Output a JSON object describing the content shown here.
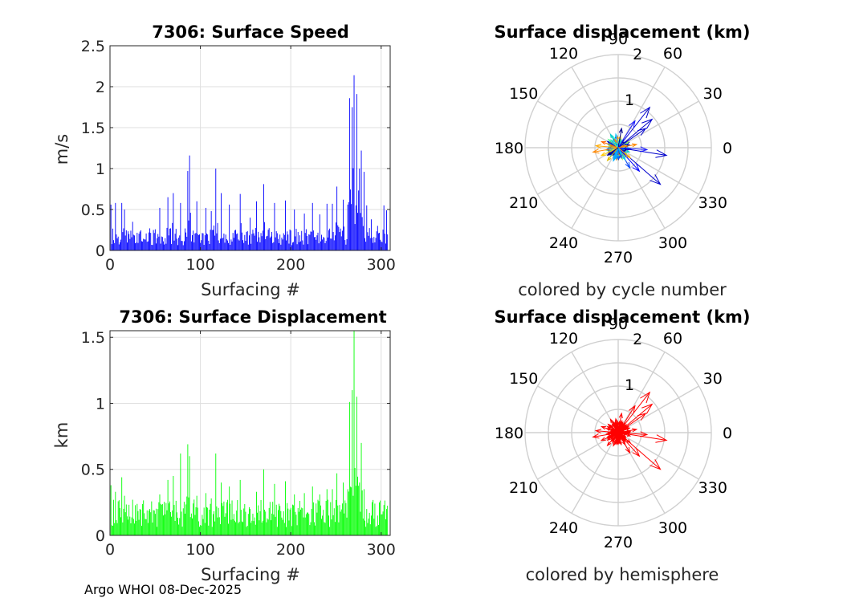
{
  "chart_data": [
    {
      "type": "bar",
      "title": "7306: Surface Speed",
      "xlabel": "Surfacing #",
      "ylabel": "m/s",
      "xlim": [
        0,
        310
      ],
      "ylim": [
        0,
        2.5
      ],
      "xticks": [
        "0",
        "100",
        "200",
        "300"
      ],
      "yticks": [
        "0",
        "0.5",
        "1",
        "1.5",
        "2",
        "2.5"
      ],
      "grid": true,
      "color": "#0000ff",
      "peaks": [
        [
          1,
          0.56
        ],
        [
          6,
          0.58
        ],
        [
          13,
          0.58
        ],
        [
          16,
          0.5
        ],
        [
          25,
          0.35
        ],
        [
          33,
          0.23
        ],
        [
          44,
          0.27
        ],
        [
          55,
          0.52
        ],
        [
          64,
          0.65
        ],
        [
          70,
          0.7
        ],
        [
          78,
          0.58
        ],
        [
          86,
          0.97
        ],
        [
          88,
          1.16
        ],
        [
          96,
          0.6
        ],
        [
          106,
          0.52
        ],
        [
          112,
          0.48
        ],
        [
          117,
          1.0
        ],
        [
          123,
          0.7
        ],
        [
          132,
          0.56
        ],
        [
          144,
          0.69
        ],
        [
          155,
          0.4
        ],
        [
          162,
          0.6
        ],
        [
          170,
          0.81
        ],
        [
          182,
          0.58
        ],
        [
          194,
          0.61
        ],
        [
          204,
          0.5
        ],
        [
          215,
          0.45
        ],
        [
          224,
          0.58
        ],
        [
          232,
          0.44
        ],
        [
          240,
          0.57
        ],
        [
          246,
          0.57
        ],
        [
          251,
          0.78
        ],
        [
          258,
          0.62
        ],
        [
          263,
          0.56
        ],
        [
          265,
          1.86
        ],
        [
          268,
          1.75
        ],
        [
          270,
          2.14
        ],
        [
          273,
          1.91
        ],
        [
          276,
          1.0
        ],
        [
          278,
          1.22
        ],
        [
          281,
          0.96
        ],
        [
          284,
          0.55
        ],
        [
          289,
          0.38
        ],
        [
          296,
          0.3
        ],
        [
          303,
          0.55
        ],
        [
          306,
          0.49
        ]
      ],
      "seed": 7306
    },
    {
      "type": "bar",
      "title": "7306: Surface Displacement",
      "xlabel": "Surfacing #",
      "ylabel": "km",
      "xlim": [
        0,
        310
      ],
      "ylim": [
        0,
        1.55
      ],
      "xticks": [
        "0",
        "100",
        "200",
        "300"
      ],
      "yticks": [
        "0",
        "0.5",
        "1",
        "1.5"
      ],
      "grid": true,
      "color": "#00ff00",
      "peaks": [
        [
          1,
          0.38
        ],
        [
          6,
          0.33
        ],
        [
          13,
          0.44
        ],
        [
          16,
          0.3
        ],
        [
          25,
          0.27
        ],
        [
          33,
          0.2
        ],
        [
          44,
          0.2
        ],
        [
          55,
          0.31
        ],
        [
          64,
          0.42
        ],
        [
          70,
          0.45
        ],
        [
          78,
          0.62
        ],
        [
          86,
          0.69
        ],
        [
          88,
          0.6
        ],
        [
          96,
          0.3
        ],
        [
          106,
          0.32
        ],
        [
          112,
          0.28
        ],
        [
          117,
          0.62
        ],
        [
          123,
          0.4
        ],
        [
          132,
          0.37
        ],
        [
          144,
          0.42
        ],
        [
          155,
          0.2
        ],
        [
          162,
          0.33
        ],
        [
          170,
          0.5
        ],
        [
          182,
          0.39
        ],
        [
          194,
          0.41
        ],
        [
          204,
          0.31
        ],
        [
          215,
          0.32
        ],
        [
          224,
          0.37
        ],
        [
          232,
          0.31
        ],
        [
          240,
          0.35
        ],
        [
          246,
          0.35
        ],
        [
          251,
          0.47
        ],
        [
          258,
          0.4
        ],
        [
          263,
          0.35
        ],
        [
          265,
          1.01
        ],
        [
          268,
          1.1
        ],
        [
          270,
          1.55
        ],
        [
          273,
          1.05
        ],
        [
          276,
          0.4
        ],
        [
          278,
          0.7
        ],
        [
          281,
          0.35
        ],
        [
          284,
          0.2
        ],
        [
          289,
          0.15
        ],
        [
          296,
          0.15
        ],
        [
          303,
          0.23
        ],
        [
          306,
          0.2
        ]
      ],
      "seed": 7307
    },
    {
      "type": "polar-compass",
      "title": "Surface displacement (km)",
      "caption": "colored by cycle number",
      "rmax": 2,
      "rticks": [
        "1",
        "2"
      ],
      "angle_labels": [
        "0",
        "30",
        "60",
        "90",
        "120",
        "150",
        "180",
        "210",
        "240",
        "270",
        "300",
        "330"
      ],
      "vectors": [
        {
          "angle": 52,
          "r": 1.1,
          "color": "#0000cc"
        },
        {
          "angle": 40,
          "r": 0.95,
          "color": "#0000cc"
        },
        {
          "angle": 35,
          "r": 0.72,
          "color": "#0000cc"
        },
        {
          "angle": 58,
          "r": 0.68,
          "color": "#1a1aff"
        },
        {
          "angle": -9,
          "r": 1.05,
          "color": "#0000cc"
        },
        {
          "angle": -4,
          "r": 0.62,
          "color": "#1a1aff"
        },
        {
          "angle": -41,
          "r": 1.2,
          "color": "#0000cc"
        },
        {
          "angle": -48,
          "r": 0.68,
          "color": "#0000ff"
        },
        {
          "angle": -60,
          "r": 0.5,
          "color": "#0044ff"
        },
        {
          "angle": 190,
          "r": 0.55,
          "color": "#ff8800"
        },
        {
          "angle": 175,
          "r": 0.48,
          "color": "#ffaa00"
        },
        {
          "angle": 205,
          "r": 0.4,
          "color": "#ffcc00"
        },
        {
          "angle": 160,
          "r": 0.38,
          "color": "#ff6600"
        },
        {
          "angle": 230,
          "r": 0.36,
          "color": "#ddbb00"
        },
        {
          "angle": 120,
          "r": 0.33,
          "color": "#00cccc"
        },
        {
          "angle": 100,
          "r": 0.3,
          "color": "#33ccff"
        },
        {
          "angle": 250,
          "r": 0.3,
          "color": "#00aaff"
        },
        {
          "angle": 140,
          "r": 0.28,
          "color": "#66ff99"
        },
        {
          "angle": 80,
          "r": 0.42,
          "color": "#000088"
        },
        {
          "angle": 10,
          "r": 0.4,
          "color": "#ff8800"
        },
        {
          "angle": 320,
          "r": 0.34,
          "color": "#ffaa00"
        },
        {
          "angle": 300,
          "r": 0.3,
          "color": "#00ccff"
        },
        {
          "angle": 270,
          "r": 0.25,
          "color": "#0066ff"
        },
        {
          "angle": 215,
          "r": 0.28,
          "color": "#000099"
        }
      ],
      "cluster_colors": [
        "#0000cc",
        "#0044ff",
        "#00aaff",
        "#00cccc",
        "#33ffcc",
        "#99ff66",
        "#ffcc00",
        "#ff8800",
        "#000088"
      ],
      "seed": 11
    },
    {
      "type": "polar-compass",
      "title": "Surface displacement (km)",
      "caption": "colored by hemisphere",
      "rmax": 2,
      "rticks": [
        "1",
        "2"
      ],
      "angle_labels": [
        "0",
        "30",
        "60",
        "90",
        "120",
        "150",
        "180",
        "210",
        "240",
        "270",
        "300",
        "330"
      ],
      "vectors": [
        {
          "angle": 52,
          "r": 1.1,
          "color": "#ff0000"
        },
        {
          "angle": 40,
          "r": 0.95,
          "color": "#ff0000"
        },
        {
          "angle": 35,
          "r": 0.72,
          "color": "#ff0000"
        },
        {
          "angle": 58,
          "r": 0.68,
          "color": "#ff0000"
        },
        {
          "angle": -9,
          "r": 1.05,
          "color": "#ff0000"
        },
        {
          "angle": -4,
          "r": 0.62,
          "color": "#ff0000"
        },
        {
          "angle": -41,
          "r": 1.2,
          "color": "#ff0000"
        },
        {
          "angle": -48,
          "r": 0.68,
          "color": "#ff0000"
        },
        {
          "angle": -60,
          "r": 0.5,
          "color": "#ff0000"
        },
        {
          "angle": 190,
          "r": 0.55,
          "color": "#ff0000"
        },
        {
          "angle": 175,
          "r": 0.48,
          "color": "#ff0000"
        },
        {
          "angle": 205,
          "r": 0.4,
          "color": "#ff0000"
        },
        {
          "angle": 160,
          "r": 0.38,
          "color": "#ff0000"
        },
        {
          "angle": 230,
          "r": 0.36,
          "color": "#ff0000"
        },
        {
          "angle": 120,
          "r": 0.33,
          "color": "#ff0000"
        },
        {
          "angle": 100,
          "r": 0.3,
          "color": "#ff0000"
        },
        {
          "angle": 250,
          "r": 0.3,
          "color": "#ff0000"
        },
        {
          "angle": 140,
          "r": 0.28,
          "color": "#ff0000"
        },
        {
          "angle": 80,
          "r": 0.42,
          "color": "#ff0000"
        },
        {
          "angle": 10,
          "r": 0.4,
          "color": "#ff0000"
        },
        {
          "angle": 320,
          "r": 0.34,
          "color": "#ff0000"
        },
        {
          "angle": 300,
          "r": 0.3,
          "color": "#ff0000"
        },
        {
          "angle": 270,
          "r": 0.25,
          "color": "#ff0000"
        },
        {
          "angle": 215,
          "r": 0.28,
          "color": "#ff0000"
        }
      ],
      "cluster_colors": [
        "#ff0000"
      ],
      "seed": 12
    }
  ],
  "footer": "Argo WHOI 08-Dec-2025"
}
